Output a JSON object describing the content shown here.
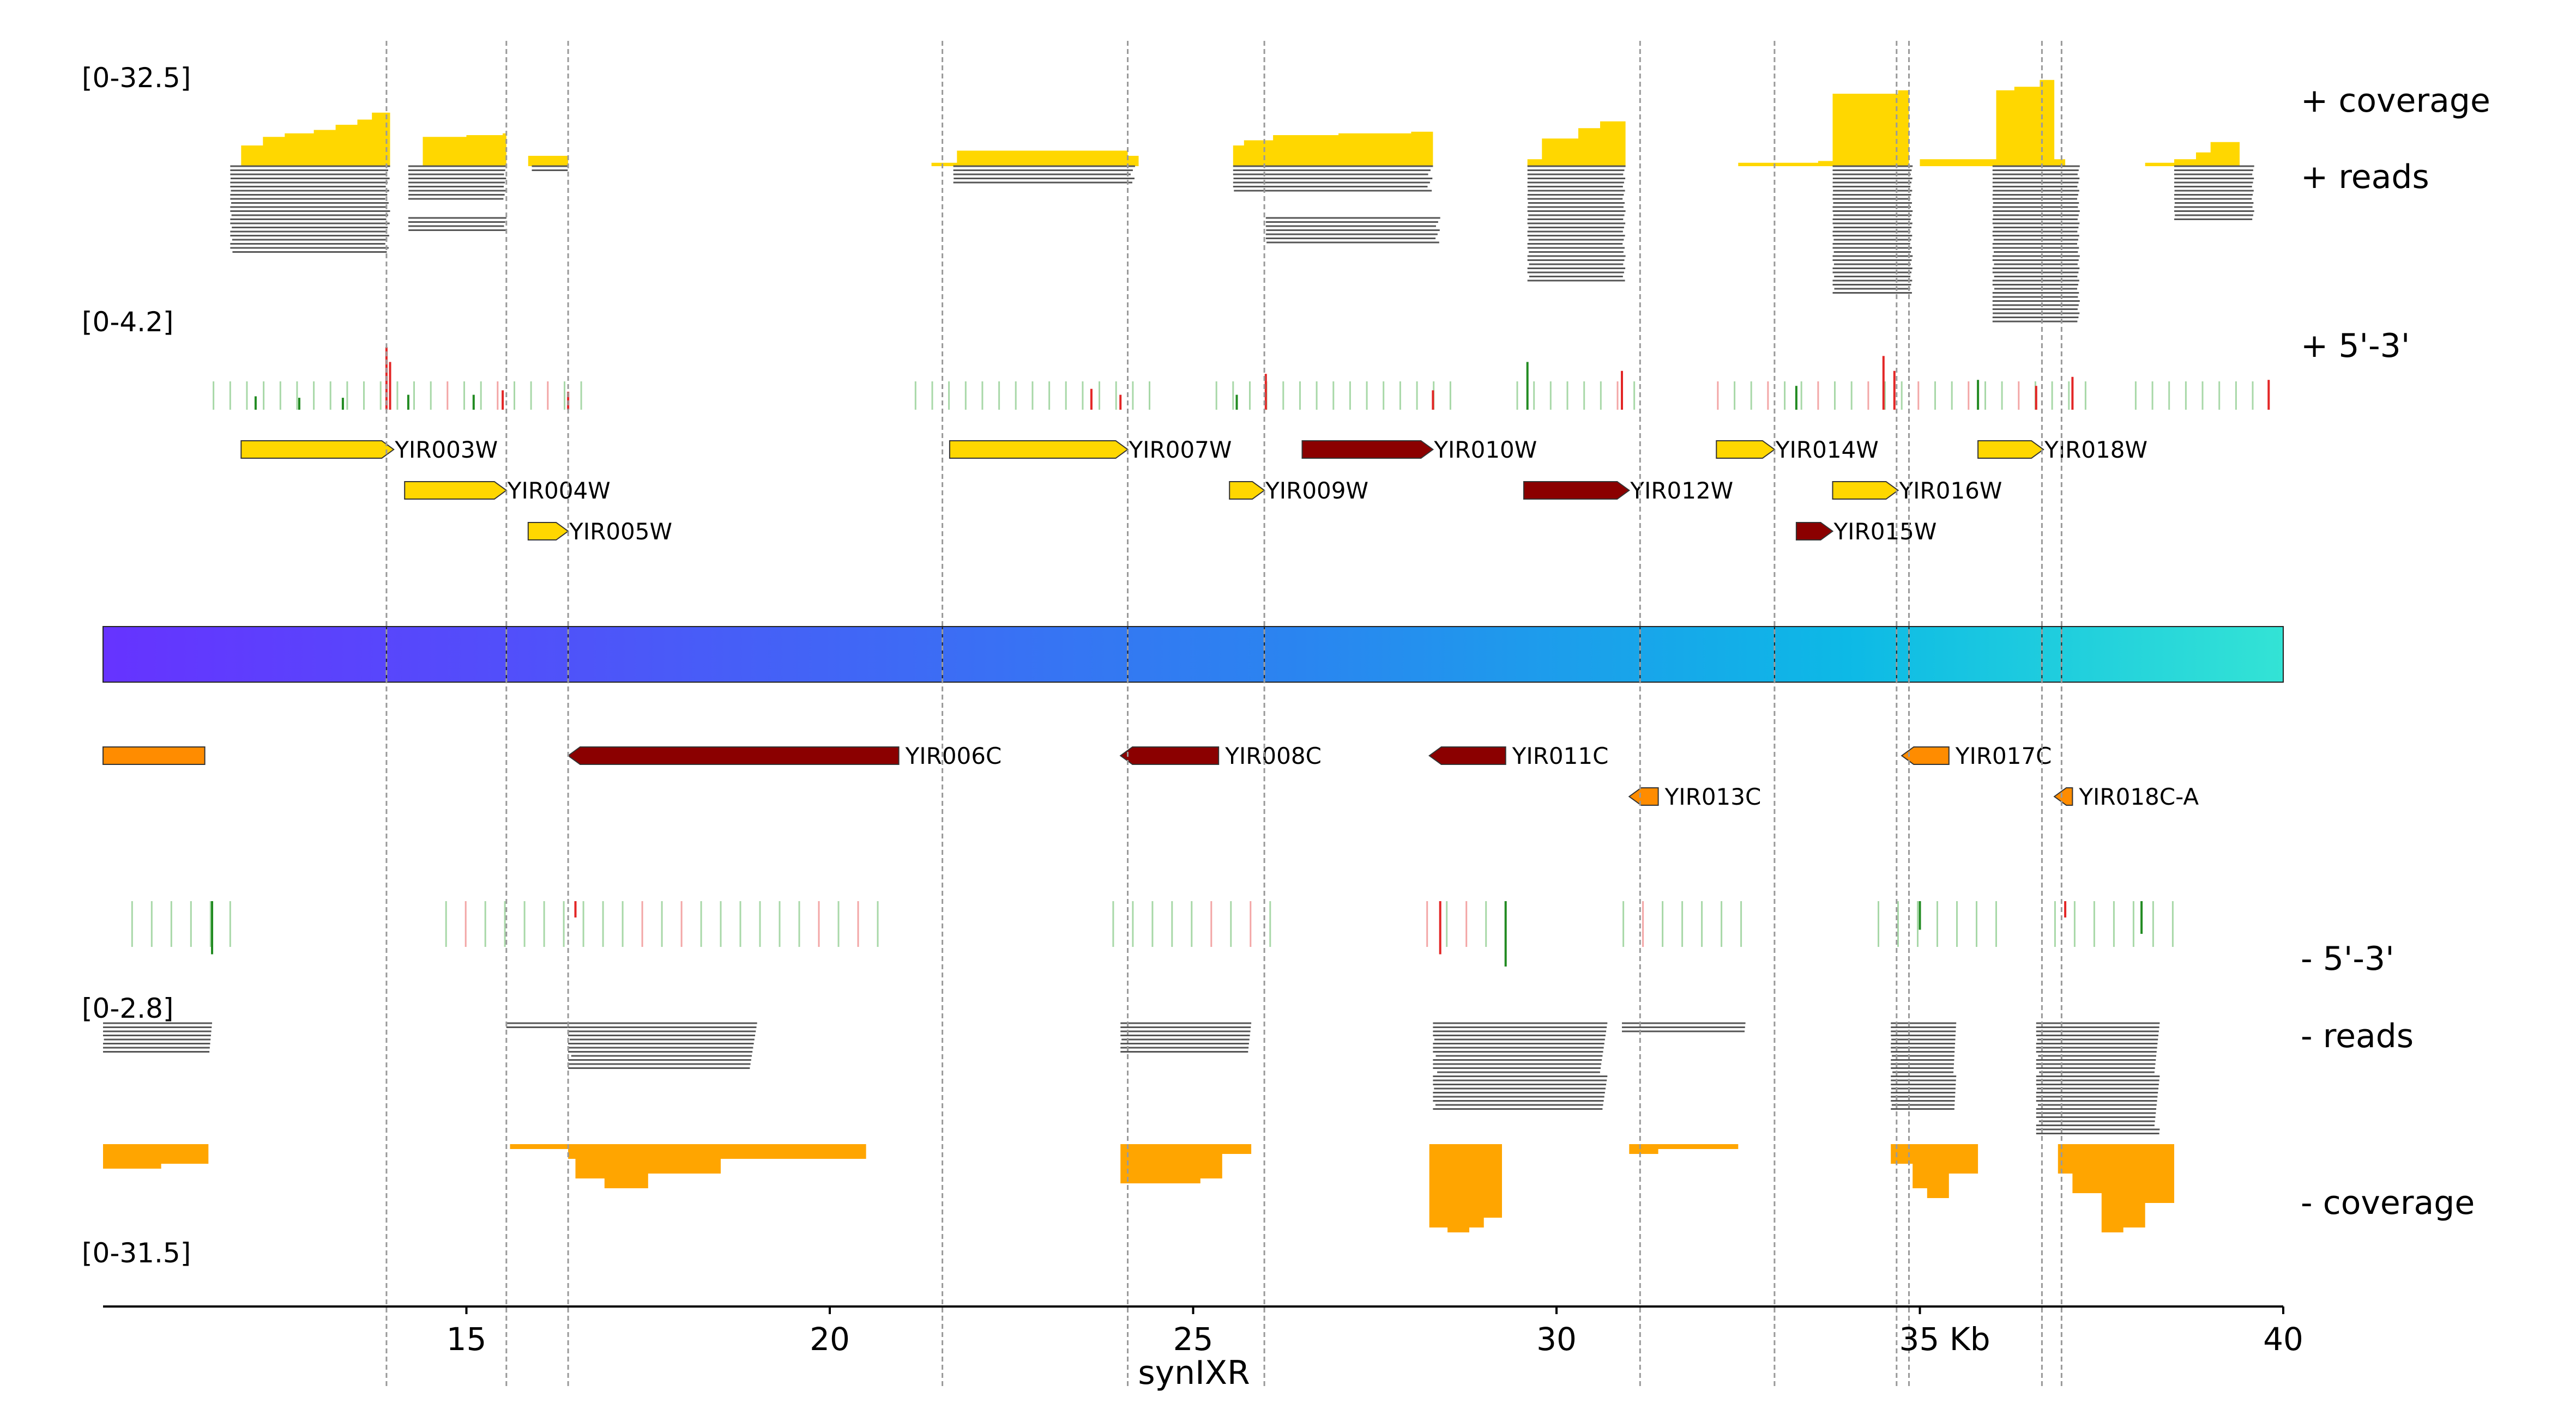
{
  "chart_data": {
    "type": "genome-track",
    "title": "",
    "xlabel": "synIXR",
    "x_unit_suffix": "Kb",
    "xlim": [
      10,
      40
    ],
    "x_ticks": [
      15,
      20,
      25,
      30,
      35,
      40
    ],
    "x_tick_labels": [
      "15",
      "20",
      "25",
      "30",
      "35 Kb",
      "40"
    ],
    "track_labels": {
      "plus_coverage": "+ coverage",
      "plus_reads": "+ reads",
      "plus_53": "+ 5'-3'",
      "minus_53": "- 5'-3'",
      "minus_reads": "- reads",
      "minus_coverage": "- coverage"
    },
    "scale_labels": {
      "plus_coverage": "[0-32.5]",
      "plus_53": "[0-4.2]",
      "minus_53": "[0-2.8]",
      "minus_coverage": "[0-31.5]"
    },
    "ranges": {
      "plus_coverage": [
        0,
        32.5
      ],
      "plus_53": [
        0,
        4.2
      ],
      "minus_53": [
        0,
        2.8
      ],
      "minus_coverage": [
        0,
        31.5
      ]
    },
    "colors": {
      "coverage_plus": "#FFD700",
      "coverage_minus": "#FFA500",
      "reads": "#555555",
      "gene_plus": "#FFD700",
      "gene_minus": "#FF8C00",
      "gene_highlight": "#8B0000",
      "signal_green": "#228B22",
      "signal_red": "#E32626",
      "bar_start": "#6633FF",
      "bar_end": "#33E3D5"
    },
    "segment_boundaries": [
      13.9,
      15.55,
      16.4,
      21.55,
      24.1,
      25.98,
      31.15,
      33.0,
      34.68,
      34.85,
      36.68,
      36.95
    ],
    "genes": [
      {
        "name": "YIR003W",
        "start": 11.9,
        "end": 14.0,
        "strand": "+",
        "row": 0,
        "color": "#FFD700"
      },
      {
        "name": "YIR004W",
        "start": 14.15,
        "end": 15.55,
        "strand": "+",
        "row": 1,
        "color": "#FFD700"
      },
      {
        "name": "YIR005W",
        "start": 15.85,
        "end": 16.4,
        "strand": "+",
        "row": 2,
        "color": "#FFD700"
      },
      {
        "name": "YIR007W",
        "start": 21.65,
        "end": 24.1,
        "strand": "+",
        "row": 0,
        "color": "#FFD700"
      },
      {
        "name": "YIR009W",
        "start": 25.5,
        "end": 25.98,
        "strand": "+",
        "row": 1,
        "color": "#FFD700"
      },
      {
        "name": "YIR010W",
        "start": 26.5,
        "end": 28.3,
        "strand": "+",
        "row": 0,
        "color": "#8B0000"
      },
      {
        "name": "YIR012W",
        "start": 29.55,
        "end": 31.0,
        "strand": "+",
        "row": 1,
        "color": "#8B0000"
      },
      {
        "name": "YIR014W",
        "start": 32.2,
        "end": 33.0,
        "strand": "+",
        "row": 0,
        "color": "#FFD700"
      },
      {
        "name": "YIR015W",
        "start": 33.3,
        "end": 33.8,
        "strand": "+",
        "row": 2,
        "color": "#8B0000"
      },
      {
        "name": "YIR016W",
        "start": 33.8,
        "end": 34.7,
        "strand": "+",
        "row": 1,
        "color": "#FFD700"
      },
      {
        "name": "YIR018W",
        "start": 35.8,
        "end": 36.7,
        "strand": "+",
        "row": 0,
        "color": "#FFD700"
      },
      {
        "name": "",
        "start": 10.0,
        "end": 11.4,
        "strand": "-",
        "row": 0,
        "color": "#FF8C00"
      },
      {
        "name": "YIR006C",
        "start": 16.4,
        "end": 20.95,
        "strand": "-",
        "row": 0,
        "color": "#8B0000"
      },
      {
        "name": "YIR008C",
        "start": 24.0,
        "end": 25.35,
        "strand": "-",
        "row": 0,
        "color": "#8B0000"
      },
      {
        "name": "YIR011C",
        "start": 28.25,
        "end": 29.3,
        "strand": "-",
        "row": 0,
        "color": "#8B0000"
      },
      {
        "name": "YIR013C",
        "start": 31.0,
        "end": 31.4,
        "strand": "-",
        "row": 1,
        "color": "#FF8C00"
      },
      {
        "name": "YIR017C",
        "start": 34.75,
        "end": 35.4,
        "strand": "-",
        "row": 0,
        "color": "#FF8C00"
      },
      {
        "name": "YIR018C-A",
        "start": 36.85,
        "end": 37.1,
        "strand": "-",
        "row": 1,
        "color": "#FF8C00"
      }
    ],
    "coverage_plus": [
      {
        "x": [
          11.75,
          11.9,
          12.2,
          12.5,
          12.9,
          13.2,
          13.5,
          13.7,
          13.95
        ],
        "y": [
          0,
          6,
          8.5,
          9.5,
          10.5,
          12,
          13.5,
          15.5,
          16
        ]
      },
      {
        "x": [
          14.2,
          14.4,
          15.0,
          15.5,
          15.55
        ],
        "y": [
          0,
          8.5,
          9,
          9.5,
          9.5
        ]
      },
      {
        "x": [
          15.85,
          16.4
        ],
        "y": [
          3,
          3
        ]
      },
      {
        "x": [
          21.4,
          21.65,
          21.75,
          22.5,
          24.0,
          24.1,
          24.25
        ],
        "y": [
          1,
          1,
          4.5,
          4.5,
          4.5,
          3,
          2
        ]
      },
      {
        "x": [
          25.55,
          25.7,
          25.95,
          26.1,
          27.0,
          28.0,
          28.3
        ],
        "y": [
          6,
          7.5,
          7.5,
          9,
          9.5,
          10,
          9.5
        ]
      },
      {
        "x": [
          29.6,
          29.8,
          30.3,
          30.6,
          30.95
        ],
        "y": [
          2,
          8,
          11,
          13,
          15
        ]
      },
      {
        "x": [
          32.5,
          33.0,
          33.6,
          33.8,
          34.7,
          34.85
        ],
        "y": [
          1,
          1,
          1.5,
          21,
          22,
          0
        ]
      },
      {
        "x": [
          35.0,
          35.8,
          36.05,
          36.3,
          36.65,
          36.85,
          37.0
        ],
        "y": [
          2,
          2,
          22,
          23,
          25,
          2,
          20
        ]
      },
      {
        "x": [
          38.1,
          38.5,
          38.8,
          39.0,
          39.4
        ],
        "y": [
          1,
          2,
          4,
          7,
          7
        ]
      }
    ],
    "coverage_minus": [
      {
        "x": [
          10.0,
          10.8,
          11.45
        ],
        "y": [
          5,
          4,
          3
        ]
      },
      {
        "x": [
          15.0,
          15.6,
          16.4,
          16.5,
          16.9,
          17.5,
          18.5,
          20.5
        ],
        "y": [
          0,
          1,
          3,
          7,
          9,
          6,
          3,
          1
        ]
      },
      {
        "x": [
          24.0,
          24.3,
          25.1,
          25.4,
          25.8
        ],
        "y": [
          8,
          8,
          7,
          2,
          1
        ]
      },
      {
        "x": [
          28.25,
          28.5,
          28.8,
          29.0,
          29.25
        ],
        "y": [
          17,
          18,
          17,
          15,
          9
        ]
      },
      {
        "x": [
          31.0,
          31.4,
          32.5
        ],
        "y": [
          2,
          1,
          1
        ]
      },
      {
        "x": [
          34.6,
          34.9,
          35.1,
          35.4,
          35.8
        ],
        "y": [
          4,
          9,
          11,
          6,
          2
        ]
      },
      {
        "x": [
          36.9,
          37.1,
          37.5,
          37.8,
          38.1,
          38.5
        ],
        "y": [
          6,
          10,
          18,
          17,
          12,
          3
        ]
      }
    ],
    "signals_plus": [
      {
        "x": 12.1,
        "v": 0.45,
        "c": "g"
      },
      {
        "x": 12.7,
        "v": 0.4,
        "c": "g"
      },
      {
        "x": 13.3,
        "v": 0.4,
        "c": "g"
      },
      {
        "x": 13.9,
        "v": 2.1,
        "c": "r"
      },
      {
        "x": 13.95,
        "v": 1.6,
        "c": "r"
      },
      {
        "x": 14.2,
        "v": 0.5,
        "c": "g"
      },
      {
        "x": 15.1,
        "v": 0.5,
        "c": "g"
      },
      {
        "x": 15.5,
        "v": 0.65,
        "c": "r"
      },
      {
        "x": 16.4,
        "v": 0.6,
        "c": "r"
      },
      {
        "x": 23.6,
        "v": 0.7,
        "c": "r"
      },
      {
        "x": 24.0,
        "v": 0.5,
        "c": "r"
      },
      {
        "x": 25.6,
        "v": 0.5,
        "c": "g"
      },
      {
        "x": 26.0,
        "v": 1.2,
        "c": "r"
      },
      {
        "x": 28.3,
        "v": 0.65,
        "c": "r"
      },
      {
        "x": 29.6,
        "v": 1.6,
        "c": "g"
      },
      {
        "x": 30.9,
        "v": 1.3,
        "c": "r"
      },
      {
        "x": 33.3,
        "v": 0.8,
        "c": "g"
      },
      {
        "x": 34.5,
        "v": 1.8,
        "c": "r"
      },
      {
        "x": 34.65,
        "v": 1.3,
        "c": "r"
      },
      {
        "x": 35.8,
        "v": 1.0,
        "c": "g"
      },
      {
        "x": 36.6,
        "v": 0.8,
        "c": "r"
      },
      {
        "x": 37.1,
        "v": 1.1,
        "c": "r"
      },
      {
        "x": 39.8,
        "v": 1.0,
        "c": "r"
      }
    ],
    "signals_minus": [
      {
        "x": 11.5,
        "v": 1.3,
        "c": "g"
      },
      {
        "x": 16.5,
        "v": 0.4,
        "c": "r"
      },
      {
        "x": 28.4,
        "v": 1.3,
        "c": "r"
      },
      {
        "x": 29.3,
        "v": 1.6,
        "c": "g"
      },
      {
        "x": 35.0,
        "v": 0.7,
        "c": "g"
      },
      {
        "x": 37.0,
        "v": 0.4,
        "c": "r"
      },
      {
        "x": 38.05,
        "v": 0.8,
        "c": "g"
      }
    ],
    "reads_plus": [
      {
        "start": 11.75,
        "end": 13.95,
        "count": 22
      },
      {
        "start": 14.2,
        "end": 15.55,
        "count": 9
      },
      {
        "start": 14.2,
        "end": 15.55,
        "count": 4,
        "gap": true
      },
      {
        "start": 15.9,
        "end": 16.4,
        "count": 2
      },
      {
        "start": 21.7,
        "end": 24.2,
        "count": 5
      },
      {
        "start": 25.55,
        "end": 28.3,
        "count": 7
      },
      {
        "start": 26.0,
        "end": 28.4,
        "count": 7,
        "gap": true
      },
      {
        "start": 29.6,
        "end": 30.95,
        "count": 29
      },
      {
        "start": 33.8,
        "end": 34.9,
        "count": 32
      },
      {
        "start": 36.0,
        "end": 37.2,
        "count": 39
      },
      {
        "start": 38.5,
        "end": 39.6,
        "count": 14
      }
    ],
    "reads_minus": [
      {
        "start": 10.0,
        "end": 11.5,
        "count": 8
      },
      {
        "start": 15.55,
        "end": 16.4,
        "count": 2
      },
      {
        "start": 16.4,
        "end": 19.0,
        "count": 12
      },
      {
        "start": 24.0,
        "end": 25.8,
        "count": 8
      },
      {
        "start": 28.3,
        "end": 30.7,
        "count": 22
      },
      {
        "start": 30.9,
        "end": 32.6,
        "count": 3
      },
      {
        "start": 34.6,
        "end": 35.5,
        "count": 22
      },
      {
        "start": 36.6,
        "end": 38.3,
        "count": 28
      }
    ]
  }
}
